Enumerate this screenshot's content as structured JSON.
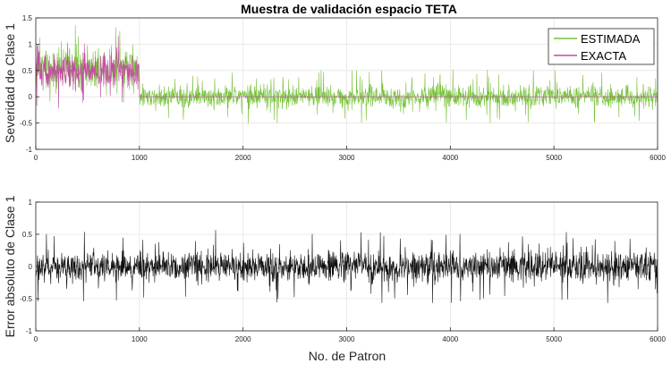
{
  "figure_title": "Muestra de validación espacio TETA",
  "colors": {
    "estimada": "#77c13a",
    "exacta": "#c44aa4",
    "error": "#111111",
    "grid": "#e4e4e4",
    "axis": "#262626",
    "background": "#ffffff"
  },
  "chart_data": [
    {
      "type": "line",
      "title": "Muestra de validación espacio TETA",
      "xlabel": "",
      "ylabel": "Severidad de Clase 1",
      "xlim": [
        0,
        6000
      ],
      "ylim": [
        -1,
        1.5
      ],
      "xticks": [
        0,
        1000,
        2000,
        3000,
        4000,
        5000,
        6000
      ],
      "yticks": [
        -1,
        -0.5,
        0,
        0.5,
        1,
        1.5
      ],
      "grid": true,
      "legend": "top-right",
      "series": [
        {
          "name": "ESTIMADA",
          "color": "#77c13a",
          "description_segments": [
            {
              "x_range": [
                1,
                1000
              ],
              "center": 0.55,
              "amplitude": 0.35
            },
            {
              "x_range": [
                1001,
                6000
              ],
              "center": 0.0,
              "amplitude": 0.2
            }
          ]
        },
        {
          "name": "EXACTA",
          "color": "#c44aa4",
          "description_segments": [
            {
              "x_range": [
                1,
                1000
              ],
              "center": 0.5,
              "amplitude": 0.3
            },
            {
              "x_range": [
                1001,
                6000
              ],
              "center": 0.0,
              "amplitude": 0.0
            }
          ]
        }
      ]
    },
    {
      "type": "line",
      "title": "",
      "xlabel": "No. de Patron",
      "ylabel": "Error absoluto de Clase 1",
      "xlim": [
        0,
        6000
      ],
      "ylim": [
        -1,
        1
      ],
      "xticks": [
        0,
        1000,
        2000,
        3000,
        4000,
        5000,
        6000
      ],
      "yticks": [
        -1,
        -0.5,
        0,
        0.5,
        1
      ],
      "grid": true,
      "series": [
        {
          "color": "#111111",
          "description_segments": [
            {
              "x_range": [
                1,
                6000
              ],
              "center": 0.0,
              "amplitude": 0.22
            }
          ]
        }
      ]
    }
  ]
}
